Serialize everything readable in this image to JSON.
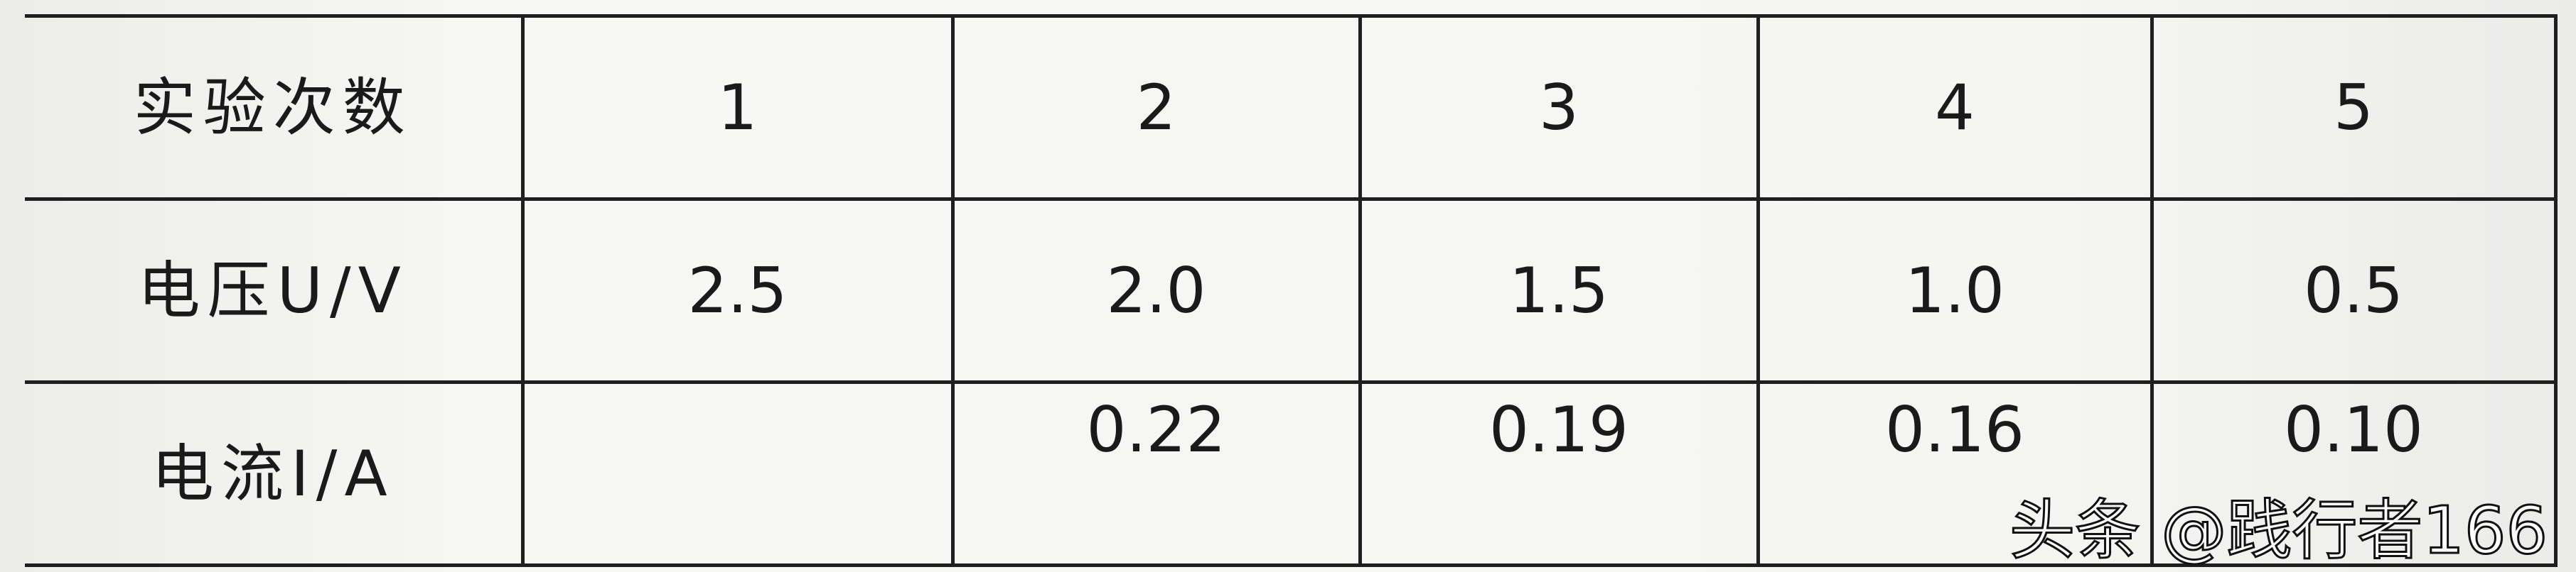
{
  "table": {
    "header_label": "实验次数",
    "trials": [
      "1",
      "2",
      "3",
      "4",
      "5"
    ],
    "rows": [
      {
        "label": "电压U/V",
        "values": [
          "2.5",
          "2.0",
          "1.5",
          "1.0",
          "0.5"
        ]
      },
      {
        "label": "电流I/A",
        "values": [
          "",
          "0.22",
          "0.19",
          "0.16",
          "0.10"
        ]
      }
    ]
  },
  "watermark": "头条 @践行者166"
}
